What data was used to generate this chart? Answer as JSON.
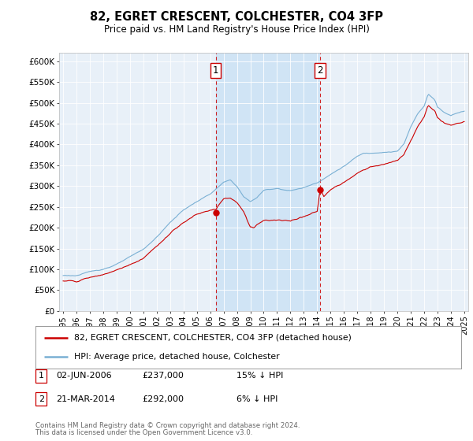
{
  "title": "82, EGRET CRESCENT, COLCHESTER, CO4 3FP",
  "subtitle": "Price paid vs. HM Land Registry's House Price Index (HPI)",
  "background_color": "#ffffff",
  "plot_bg_color": "#e8f0f8",
  "hpi_color": "#7ab0d4",
  "price_color": "#cc0000",
  "shade_color": "#d0e4f5",
  "ylim": [
    0,
    620000
  ],
  "yticks": [
    0,
    50000,
    100000,
    150000,
    200000,
    250000,
    300000,
    350000,
    400000,
    450000,
    500000,
    550000,
    600000
  ],
  "sale1_year": 2006.42,
  "sale1_price": 237000,
  "sale2_year": 2014.22,
  "sale2_price": 292000,
  "legend_label_price": "82, EGRET CRESCENT, COLCHESTER, CO4 3FP (detached house)",
  "legend_label_hpi": "HPI: Average price, detached house, Colchester",
  "footer1": "Contains HM Land Registry data © Crown copyright and database right 2024.",
  "footer2": "This data is licensed under the Open Government Licence v3.0.",
  "table_row1": [
    "1",
    "02-JUN-2006",
    "£237,000",
    "15% ↓ HPI"
  ],
  "table_row2": [
    "2",
    "21-MAR-2014",
    "£292,000",
    "6% ↓ HPI"
  ]
}
